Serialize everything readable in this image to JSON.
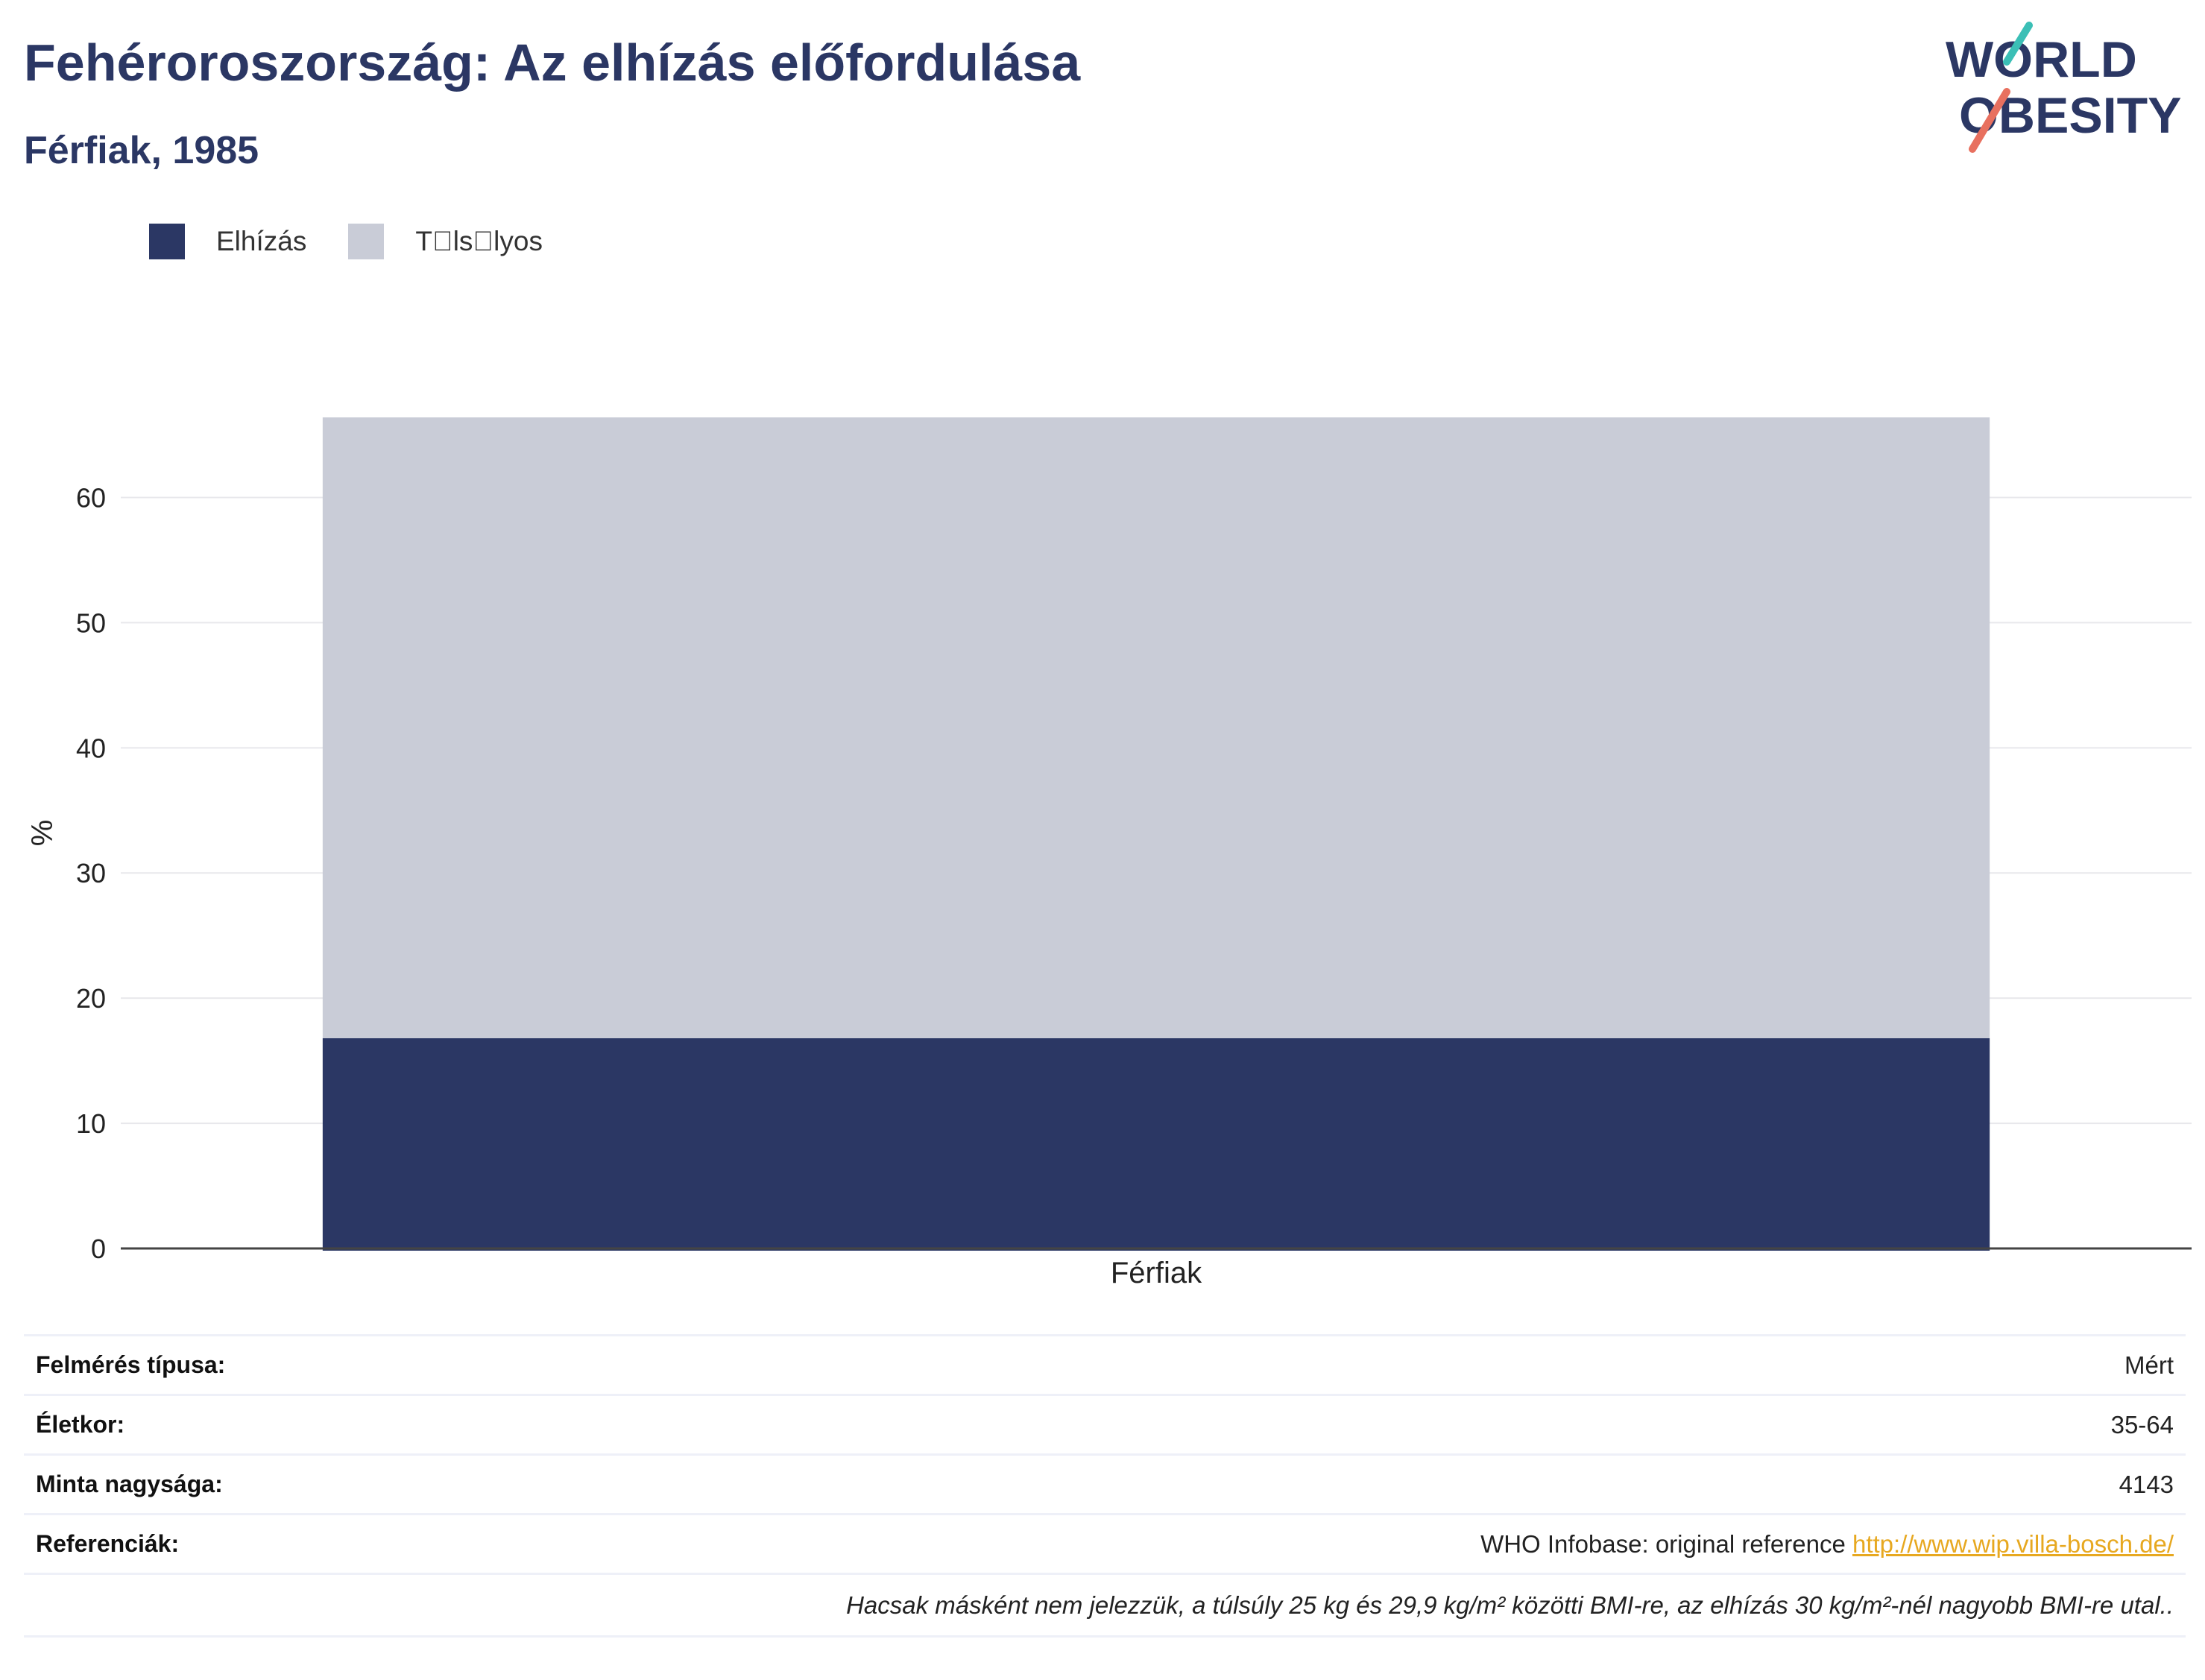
{
  "header": {
    "title": "Fehéroroszország: Az elhízás előfordulása",
    "subtitle": "Férfiak, 1985"
  },
  "logo": {
    "line1": "WORLD",
    "line2": "OBESITY",
    "colors": {
      "text": "#2b3764",
      "slash_teal": "#3bbfb6",
      "slash_coral": "#e8705f"
    }
  },
  "chart_data": {
    "type": "bar",
    "stacked": true,
    "categories": [
      "Férfiak"
    ],
    "series": [
      {
        "name": "Elhízás",
        "values": [
          16.8
        ],
        "color": "#2b3764"
      },
      {
        "name": "T\u0000ls\u0000lyos",
        "values": [
          49.6
        ],
        "color": "#c9ccd7"
      }
    ],
    "title": "",
    "xlabel": "",
    "ylabel": "%",
    "ylim": [
      0,
      66.4
    ],
    "yticks": [
      0,
      10,
      20,
      30,
      40,
      50,
      60
    ],
    "grid": true,
    "legend_position": "top-left"
  },
  "info": {
    "rows": [
      {
        "label": "Felmérés típusa:",
        "value": "Mért"
      },
      {
        "label": "Életkor:",
        "value": "35-64"
      },
      {
        "label": "Minta nagysága:",
        "value": "4143"
      }
    ],
    "references": {
      "label": "Referenciák:",
      "text": "WHO Infobase: original reference ",
      "link": "http://www.wip.villa-bosch.de/"
    },
    "note": "Hacsak másként nem jelezzük, a túlsúly 25 kg és 29,9 kg/m² közötti BMI-re, az elhízás 30 kg/m²-nél nagyobb BMI-re utal.."
  }
}
